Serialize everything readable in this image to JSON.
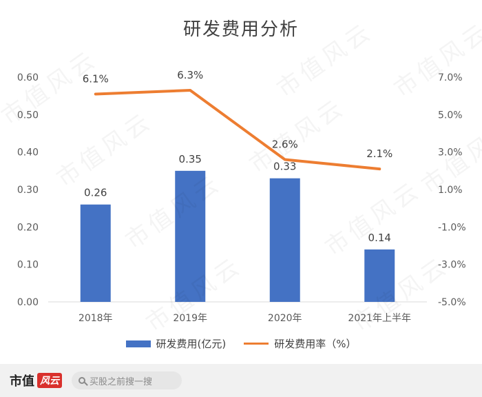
{
  "chart_data": {
    "type": "bar+line",
    "title": "研发费用分析",
    "categories": [
      "2018年",
      "2019年",
      "2020年",
      "2021年上半年"
    ],
    "series": [
      {
        "name": "研发费用(亿元)",
        "type": "bar",
        "axis": "left",
        "values": [
          0.26,
          0.35,
          0.33,
          0.14
        ],
        "labels": [
          "0.26",
          "0.35",
          "0.33",
          "0.14"
        ],
        "color": "#4472c4"
      },
      {
        "name": "研发费用率（%）",
        "type": "line",
        "axis": "right",
        "values": [
          6.1,
          6.3,
          2.6,
          2.1
        ],
        "labels": [
          "6.1%",
          "6.3%",
          "2.6%",
          "2.1%"
        ],
        "color": "#ed7d31"
      }
    ],
    "y_left": {
      "ylim": [
        0,
        0.6
      ],
      "ticks": [
        0,
        0.1,
        0.2,
        0.3,
        0.4,
        0.5,
        0.6
      ],
      "tick_labels": [
        "0.00",
        "0.10",
        "0.20",
        "0.30",
        "0.40",
        "0.50",
        "0.60"
      ]
    },
    "y_right": {
      "ylim": [
        -5.0,
        7.0
      ],
      "ticks": [
        -5,
        -3,
        -1,
        1,
        3,
        5,
        7
      ],
      "tick_labels": [
        "-5.0%",
        "-3.0%",
        "-1.0%",
        "1.0%",
        "3.0%",
        "5.0%",
        "7.0%"
      ]
    },
    "grid": false,
    "legend_position": "bottom"
  },
  "watermark": "市值风云",
  "footer": {
    "brand_text": "市值",
    "brand_badge": "风云",
    "search_placeholder": "买股之前搜一搜"
  }
}
